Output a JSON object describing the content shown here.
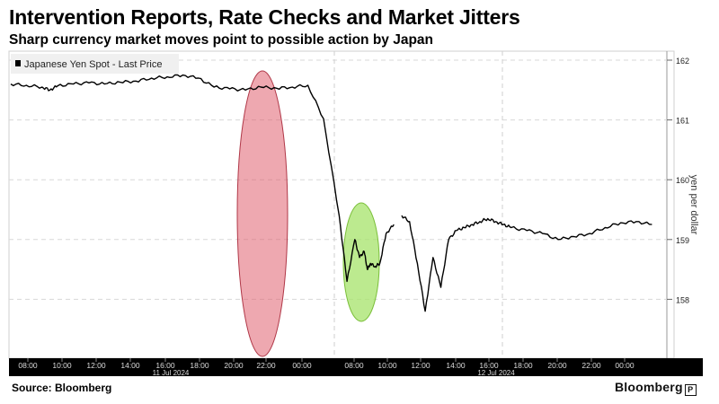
{
  "title": "Intervention Reports, Rate Checks and Market Jitters",
  "subtitle": "Sharp currency market moves point to possible action by Japan",
  "source": "Source: Bloomberg",
  "logo": "Bloomberg",
  "colors": {
    "line": "#000000",
    "highlight_red": "#e06070",
    "highlight_green": "#a6e36a",
    "axis_band": "#000000"
  },
  "chart_data": {
    "type": "line",
    "series": [
      {
        "name": "Japanese Yen Spot - Last Price",
        "x_hours": [
          0,
          1,
          2,
          2.5,
          3,
          4,
          5,
          6,
          7,
          8,
          9,
          10,
          11,
          12,
          13,
          14,
          15,
          16,
          17,
          18,
          19,
          20,
          21,
          21.5,
          22,
          22.3,
          22.6,
          22.8,
          23,
          23.3,
          23.6,
          24,
          24.5,
          25,
          25.5,
          26,
          26.5,
          27,
          27.5,
          28,
          28.5,
          29,
          29.5,
          30,
          30.5,
          31,
          31.5,
          32,
          33,
          34,
          35,
          36,
          37,
          38,
          39,
          40,
          41
        ],
        "values": [
          161.6,
          161.58,
          161.55,
          161.5,
          161.57,
          161.6,
          161.62,
          161.6,
          161.63,
          161.65,
          161.7,
          161.72,
          161.75,
          161.7,
          161.55,
          161.52,
          161.5,
          161.55,
          161.53,
          161.55,
          161.58,
          161.02,
          159.4,
          158.3,
          159.0,
          158.7,
          158.8,
          158.5,
          158.6,
          158.55,
          158.6,
          159.1,
          159.25,
          159.4,
          159.3,
          158.6,
          157.8,
          158.7,
          158.2,
          159.0,
          159.15,
          159.2,
          159.25,
          159.3,
          159.35,
          159.3,
          159.25,
          159.2,
          159.15,
          159.1,
          159.0,
          159.05,
          159.1,
          159.2,
          159.28,
          159.3,
          159.25
        ]
      }
    ],
    "x_tick_labels": [
      "08:00",
      "10:00",
      "12:00",
      "14:00",
      "16:00",
      "18:00",
      "20:00",
      "22:00",
      "00:00",
      "08:00",
      "10:00",
      "12:00",
      "14:00",
      "16:00",
      "18:00",
      "20:00",
      "22:00",
      "00:00"
    ],
    "date_labels": [
      "11 Jul 2024",
      "12 Jul 2024"
    ],
    "y_ticks": [
      158,
      159,
      160,
      161,
      162
    ],
    "ylabel": "yen per dollar",
    "ylim": [
      157.05,
      162.15
    ],
    "legend_position": "top-left",
    "annotations": [
      {
        "shape": "ellipse",
        "color": "red",
        "note": "11 Jul 22:00 drop"
      },
      {
        "shape": "ellipse",
        "color": "green",
        "note": "12 Jul 08:00 drop"
      }
    ]
  }
}
